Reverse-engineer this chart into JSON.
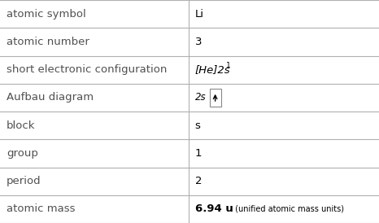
{
  "rows": [
    {
      "label": "atomic symbol",
      "value": "Li",
      "type": "text"
    },
    {
      "label": "atomic number",
      "value": "3",
      "type": "text"
    },
    {
      "label": "short electronic configuration",
      "value": "[He]2s^1",
      "type": "config"
    },
    {
      "label": "Aufbau diagram",
      "value": "aufbau",
      "type": "aufbau"
    },
    {
      "label": "block",
      "value": "s",
      "type": "text"
    },
    {
      "label": "group",
      "value": "1",
      "type": "text"
    },
    {
      "label": "period",
      "value": "2",
      "type": "text"
    },
    {
      "label": "atomic mass",
      "value": "6.94 u",
      "type": "mass"
    }
  ],
  "col_split": 0.497,
  "bg_color": "#ffffff",
  "label_color": "#505050",
  "value_color": "#000000",
  "line_color": "#b0b0b0",
  "label_font_size": 9.5,
  "value_font_size": 9.5,
  "aufbau_font_size": 8.5
}
